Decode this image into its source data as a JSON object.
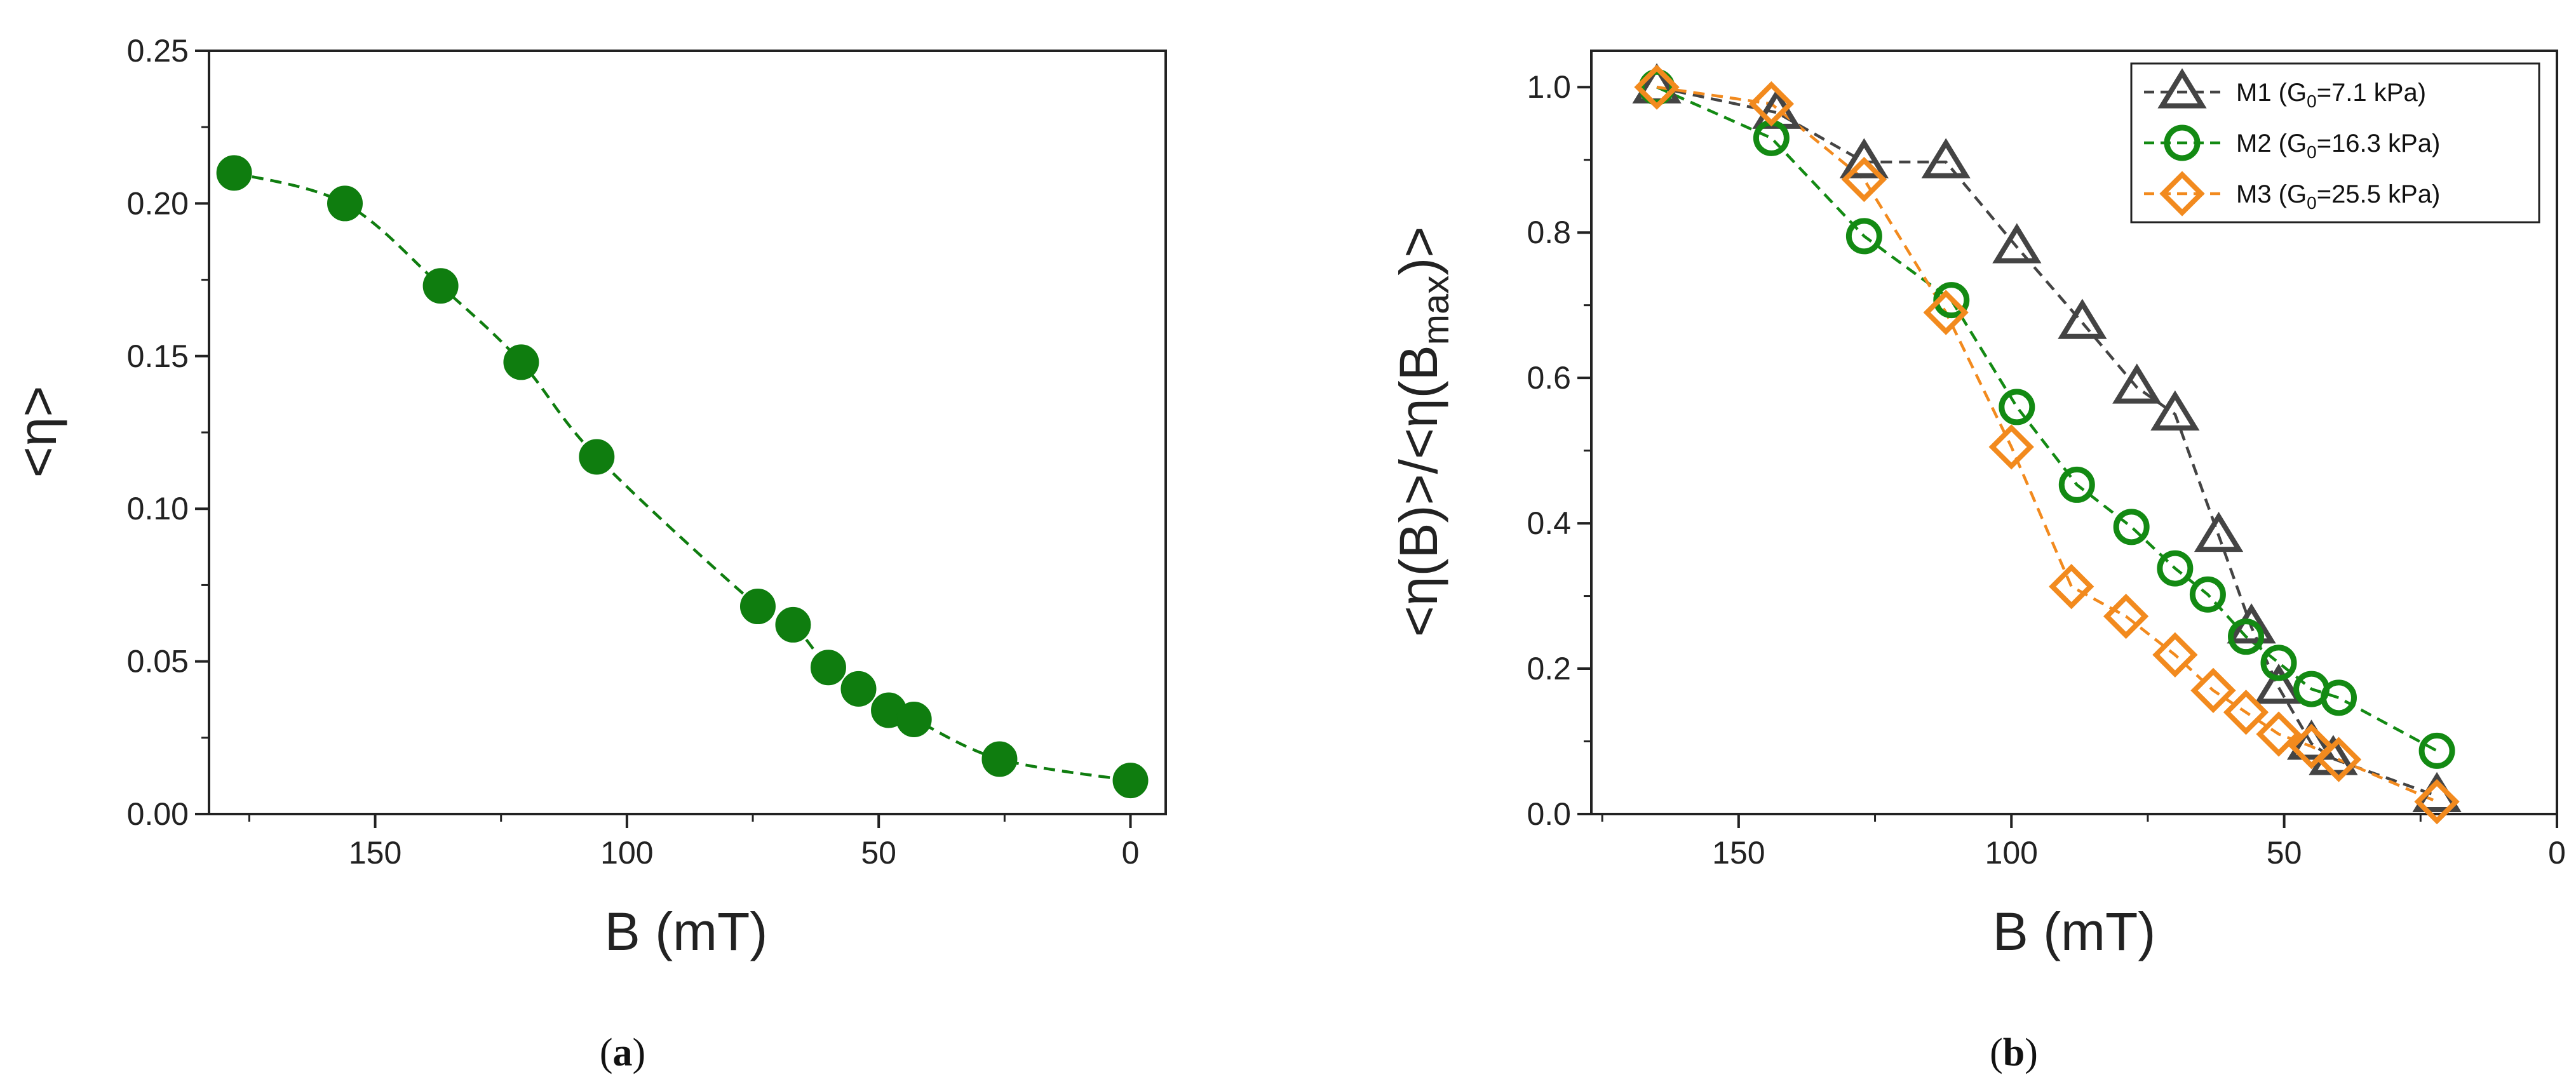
{
  "chart_data": [
    {
      "type": "scatter",
      "panel_label": "a",
      "xlabel": "B (mT)",
      "ylabel": "<η>",
      "xlim": [
        183,
        -7
      ],
      "ylim": [
        0,
        0.25
      ],
      "xticks": [
        150,
        100,
        50,
        0
      ],
      "yticks": [
        0.0,
        0.05,
        0.1,
        0.15,
        0.2,
        0.25
      ],
      "grid": false,
      "series": [
        {
          "name": "<η>",
          "marker": "filled-circle",
          "color": "#0f7d0f",
          "line_style": "dashed",
          "x": [
            178,
            156,
            137,
            121,
            106,
            74,
            67,
            60,
            54,
            48,
            43,
            26,
            0
          ],
          "y": [
            0.21,
            0.2,
            0.173,
            0.148,
            0.117,
            0.068,
            0.062,
            0.048,
            0.041,
            0.034,
            0.031,
            0.018,
            0.011
          ]
        }
      ]
    },
    {
      "type": "scatter",
      "panel_label": "b",
      "xlabel": "B (mT)",
      "ylabel": "<η(B)>/<η(B_max)>",
      "xlim": [
        177,
        0
      ],
      "ylim": [
        0,
        1.05
      ],
      "xticks": [
        150,
        100,
        50,
        0
      ],
      "yticks": [
        0.0,
        0.2,
        0.4,
        0.6,
        0.8,
        1.0
      ],
      "grid": false,
      "legend_position": "top-right",
      "series": [
        {
          "name": "M1 (G0=7.1 kPa)",
          "legend_prefix": "M1 (G",
          "legend_sub": "0",
          "legend_suffix": "=7.1 kPa)",
          "marker": "open-triangle",
          "color": "#444444",
          "line_style": "dashed",
          "x": [
            165,
            143,
            127,
            112,
            99,
            87,
            77,
            70,
            62,
            56,
            51,
            45,
            41,
            22
          ],
          "y": [
            1.0,
            0.965,
            0.897,
            0.897,
            0.78,
            0.676,
            0.587,
            0.55,
            0.383,
            0.257,
            0.174,
            0.097,
            0.076,
            0.025
          ]
        },
        {
          "name": "M2 (G0=16.3 kPa)",
          "legend_prefix": "M2 (G",
          "legend_sub": "0",
          "legend_suffix": "=16.3 kPa)",
          "marker": "open-circle",
          "color": "#138a13",
          "line_style": "dashed",
          "x": [
            165,
            144,
            127,
            111,
            99,
            88,
            78,
            70,
            64,
            57,
            51,
            45,
            40,
            22
          ],
          "y": [
            1.0,
            0.93,
            0.795,
            0.707,
            0.56,
            0.453,
            0.395,
            0.338,
            0.302,
            0.244,
            0.208,
            0.172,
            0.16,
            0.087
          ]
        },
        {
          "name": "M3 (G0=25.5 kPa)",
          "legend_prefix": "M3 (G",
          "legend_sub": "0",
          "legend_suffix": "=25.5 kPa)",
          "marker": "open-diamond",
          "color": "#f28a1e",
          "line_style": "dashed",
          "x": [
            165,
            144,
            127,
            112,
            100,
            89,
            79,
            70,
            63,
            57,
            51,
            45,
            40,
            22
          ],
          "y": [
            1.0,
            0.977,
            0.873,
            0.69,
            0.505,
            0.313,
            0.272,
            0.219,
            0.17,
            0.14,
            0.11,
            0.093,
            0.075,
            0.017
          ]
        }
      ]
    }
  ]
}
